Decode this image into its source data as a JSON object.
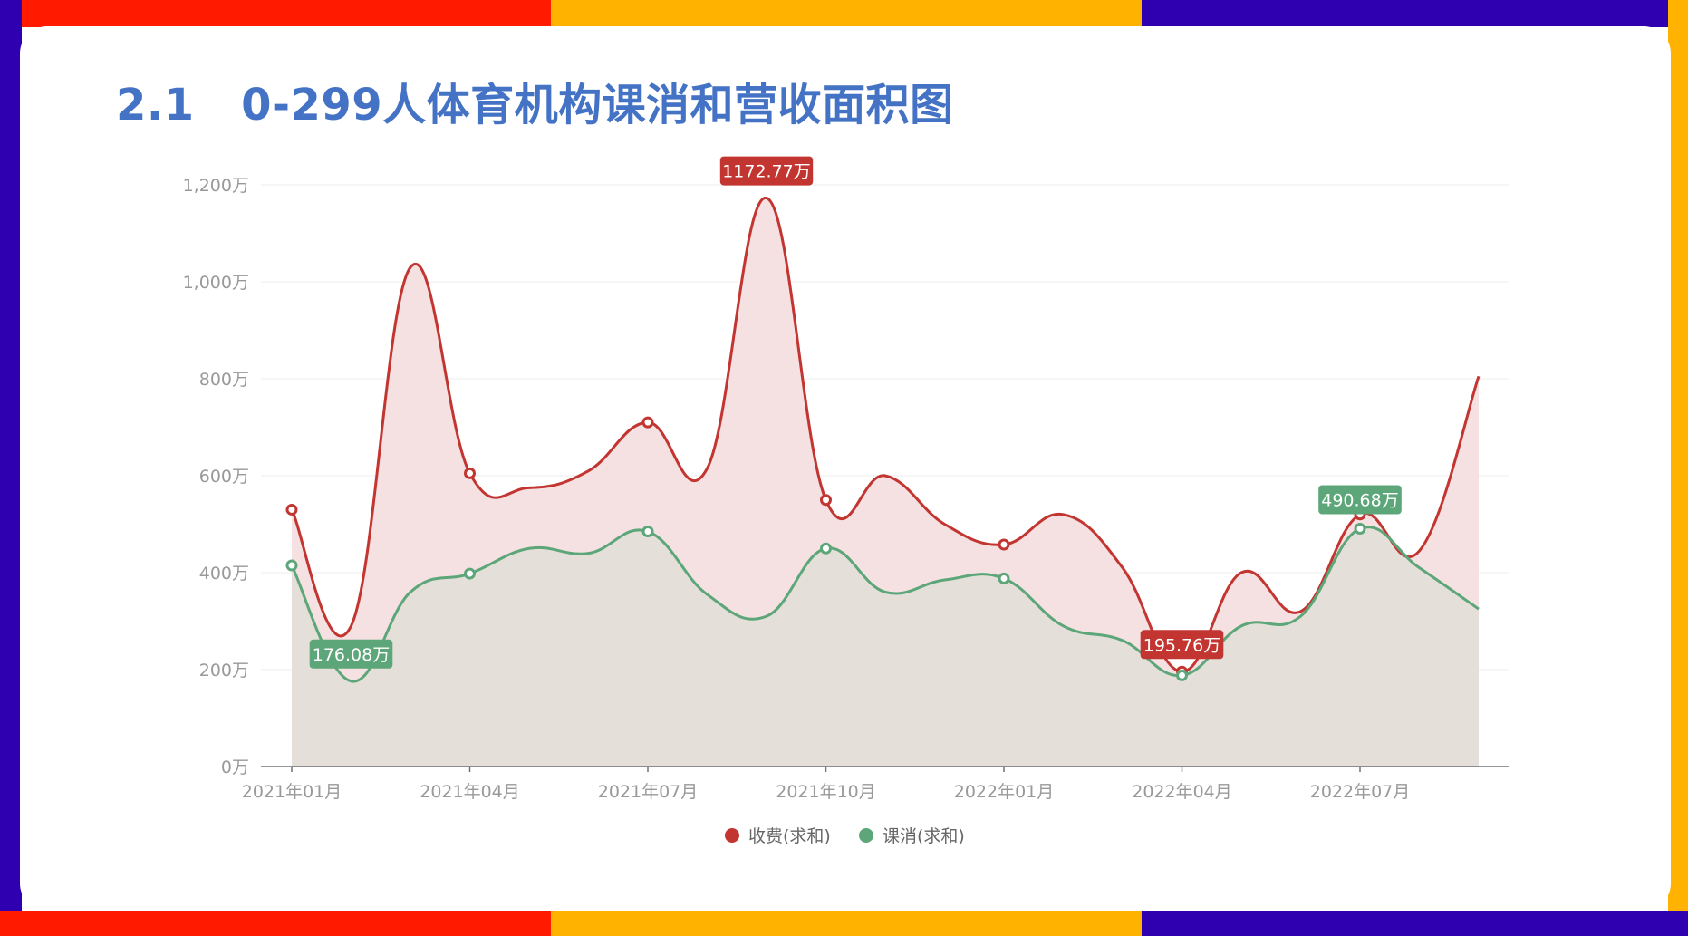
{
  "page": {
    "title": "2.1   0-299人体育机构课消和营收面积图",
    "colors": {
      "red_band": "#ff1a00",
      "yellow_band": "#ffb300",
      "purple_band": "#2e00b0",
      "title": "#4472c4"
    }
  },
  "chart_data": {
    "type": "area",
    "x": [
      "2021年01月",
      "2021年02月",
      "2021年03月",
      "2021年04月",
      "2021年05月",
      "2021年06月",
      "2021年07月",
      "2021年08月",
      "2021年09月",
      "2021年10月",
      "2021年11月",
      "2021年12月",
      "2022年01月",
      "2022年02月",
      "2022年03月",
      "2022年04月",
      "2022年05月",
      "2022年06月",
      "2022年07月",
      "2022年08月",
      "2022年09月"
    ],
    "x_tick_labels": [
      "2021年01月",
      "2021年04月",
      "2021年07月",
      "2021年10月",
      "2022年01月",
      "2022年04月",
      "2022年07月"
    ],
    "y_tick_labels": [
      "0万",
      "200万",
      "400万",
      "600万",
      "800万",
      "1,000万",
      "1,200万"
    ],
    "ylim": [
      0,
      1200
    ],
    "y_unit": "万",
    "grid": true,
    "legend_position": "bottom",
    "series": [
      {
        "name": "收费(求和)",
        "color": "#c23531",
        "fill": "#f5e1e1",
        "values": [
          530,
          290,
          1030,
          605,
          575,
          610,
          710,
          615,
          1172.77,
          550,
          600,
          500,
          458,
          520,
          410,
          195.76,
          400,
          320,
          520,
          445,
          805
        ],
        "markers": [
          0,
          3,
          6,
          9,
          12,
          15,
          18
        ],
        "max_label": "1172.77万",
        "min_label": "195.76万"
      },
      {
        "name": "课消(求和)",
        "color": "#5ca679",
        "fill": "#e3ded8",
        "values": [
          415,
          176.08,
          360,
          398,
          450,
          440,
          485,
          355,
          310,
          450,
          360,
          385,
          388,
          290,
          260,
          188,
          290,
          310,
          490.68,
          410,
          325
        ],
        "markers": [
          0,
          3,
          6,
          9,
          12,
          15,
          18
        ],
        "max_label": "490.68万",
        "min_label": "176.08万"
      }
    ]
  }
}
